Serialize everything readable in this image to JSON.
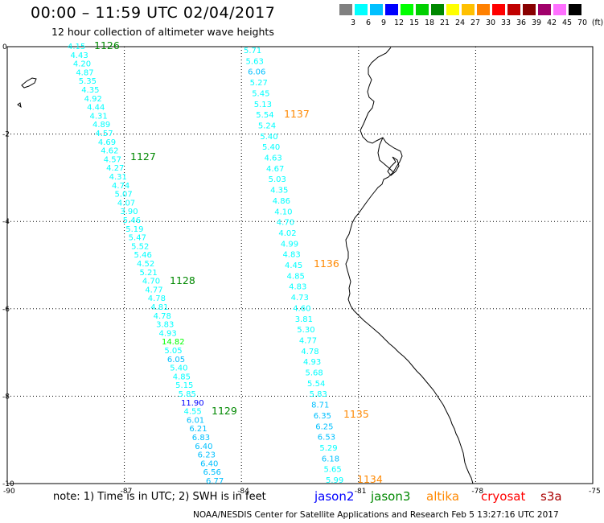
{
  "header": {
    "title": "00:00 – 11:59 UTC 02/04/2017",
    "subtitle": "12 hour collection of altimeter wave heights"
  },
  "color_scale": {
    "colors": [
      "#808080",
      "#00ffff",
      "#00c0ff",
      "#0000ff",
      "#00ff00",
      "#00d000",
      "#008800",
      "#ffff00",
      "#ffc000",
      "#ff8000",
      "#ff0000",
      "#c00000",
      "#880000",
      "#a0006a",
      "#ff70ff",
      "#000000"
    ],
    "labels": [
      "3",
      "6",
      "9",
      "12",
      "15",
      "18",
      "21",
      "24",
      "27",
      "30",
      "33",
      "36",
      "39",
      "42",
      "45",
      "70",
      "(ft)"
    ]
  },
  "axes": {
    "x_ticks": [
      "-90",
      "-87",
      "-84",
      "-81",
      "-78",
      "-75"
    ],
    "y_ticks": [
      "0",
      "-2",
      "-4",
      "-6",
      "-8",
      "-10"
    ],
    "x_range": [
      -90,
      -75
    ],
    "y_range": [
      -10,
      0
    ]
  },
  "passes": [
    {
      "id": "1126",
      "color": "#008800",
      "satellite": "jason3"
    },
    {
      "id": "1127",
      "color": "#008800",
      "satellite": "jason3"
    },
    {
      "id": "1128",
      "color": "#008800",
      "satellite": "jason3"
    },
    {
      "id": "1129",
      "color": "#008800",
      "satellite": "jason3"
    },
    {
      "id": "1137",
      "color": "#ff8800",
      "satellite": "altika"
    },
    {
      "id": "1136",
      "color": "#ff8800",
      "satellite": "altika"
    },
    {
      "id": "1135",
      "color": "#ff8800",
      "satellite": "altika"
    },
    {
      "id": "1134",
      "color": "#ff8800",
      "satellite": "altika"
    }
  ],
  "track_west": [
    "4.15",
    "4.43",
    "4.20",
    "4.87",
    "5.35",
    "4.35",
    "4.92",
    "4.44",
    "4.31",
    "4.89",
    "4.57",
    "4.69",
    "4.62",
    "4.57",
    "4.27",
    "4.31",
    "4.74",
    "5.07",
    "4.07",
    "3.90",
    "5.46",
    "5.19",
    "5.47",
    "5.52",
    "5.46",
    "4.52",
    "5.21",
    "4.70",
    "4.77",
    "4.78",
    "4.81",
    "4.78",
    "3.83",
    "4.93",
    "14.82",
    "5.05",
    "6.05",
    "5.40",
    "4.85",
    "5.15",
    "5.85",
    "11.90",
    "4.55",
    "6.01",
    "6.21",
    "6.83",
    "6.40",
    "6.23",
    "6.40",
    "6.56",
    "6.77"
  ],
  "track_east": [
    "5.71",
    "5.63",
    "6.06",
    "5.27",
    "5.45",
    "5.13",
    "5.54",
    "5.24",
    "5.40",
    "5.40",
    "4.63",
    "4.67",
    "5.03",
    "4.35",
    "4.86",
    "4.10",
    "4.70",
    "4.02",
    "4.99",
    "4.83",
    "4.45",
    "4.85",
    "4.83",
    "4.73",
    "4.60",
    "3.81",
    "5.30",
    "4.77",
    "4.78",
    "4.93",
    "5.68",
    "5.54",
    "5.83",
    "8.71",
    "6.35",
    "6.25",
    "6.53",
    "5.29",
    "6.18",
    "5.65",
    "5.99"
  ],
  "legend": {
    "note": "note: 1) Time is in UTC; 2) SWH is in feet",
    "satellites": [
      {
        "name": "jason2",
        "color": "#0000ff"
      },
      {
        "name": "jason3",
        "color": "#008800"
      },
      {
        "name": "altika",
        "color": "#ff8800"
      },
      {
        "name": "cryosat",
        "color": "#ff0000"
      },
      {
        "name": "s3a",
        "color": "#aa0000"
      }
    ]
  },
  "footer": "NOAA/NESDIS Center for Satellite Applications and Research    Feb  5 13:27:16 UTC 2017"
}
